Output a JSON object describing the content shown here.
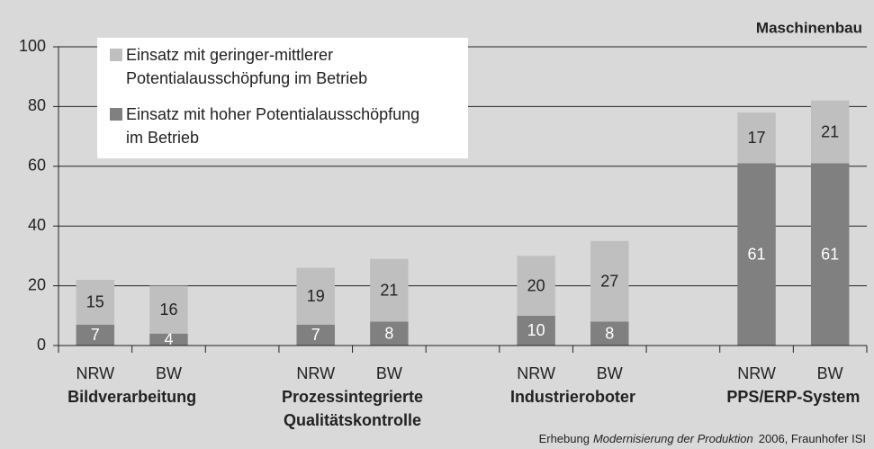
{
  "chart_data": {
    "type": "stacked-bar",
    "title": "Maschinenbau",
    "categories": [
      "NRW",
      "BW",
      null,
      "NRW",
      "BW",
      null,
      "NRW",
      "BW",
      null,
      "NRW",
      "BW"
    ],
    "group_labels": [
      [
        "Bildverarbeitung"
      ],
      [
        "Prozessintegrierte",
        "Qualitätskontrolle"
      ],
      [
        "Industrieroboter"
      ],
      [
        "PPS/ERP-System"
      ]
    ],
    "series": [
      {
        "name": "Einsatz mit hoher Potentialausschöpfung im Betrieb",
        "color": "#808080",
        "values": [
          7,
          4,
          null,
          7,
          8,
          null,
          10,
          8,
          null,
          61,
          61
        ]
      },
      {
        "name": "Einsatz mit geringer-mittlerer Potentialausschöpfung im Betrieb",
        "color": "#bfbfbf",
        "values": [
          15,
          16,
          null,
          19,
          21,
          null,
          20,
          27,
          null,
          17,
          21
        ]
      }
    ],
    "ylim": [
      0,
      100
    ],
    "yticks": [
      0,
      20,
      40,
      60,
      80,
      100
    ],
    "grid": true,
    "source": {
      "before": "Erhebung",
      "italic": "Modernisierung der Produktion",
      "after": "2006, Fraunhofer ISI"
    }
  }
}
